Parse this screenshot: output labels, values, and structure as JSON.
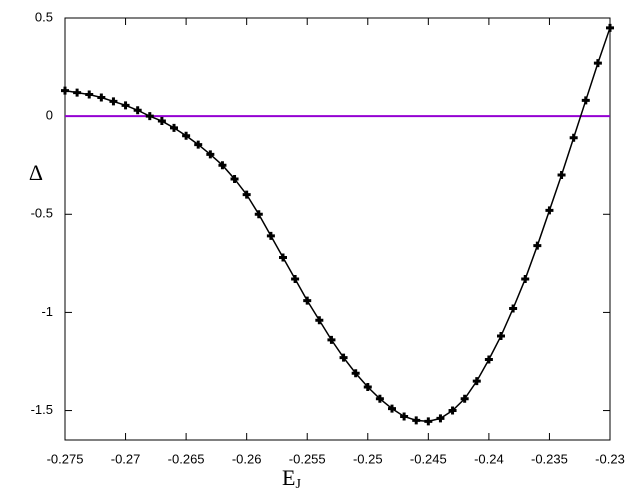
{
  "chart_data": {
    "type": "line",
    "xlabel": "E",
    "xlabel_subscript": "J",
    "ylabel": "Δ",
    "x": [
      -0.275,
      -0.274,
      -0.273,
      -0.272,
      -0.271,
      -0.27,
      -0.269,
      -0.268,
      -0.267,
      -0.266,
      -0.265,
      -0.264,
      -0.263,
      -0.262,
      -0.261,
      -0.26,
      -0.259,
      -0.258,
      -0.257,
      -0.256,
      -0.255,
      -0.254,
      -0.253,
      -0.252,
      -0.251,
      -0.25,
      -0.249,
      -0.248,
      -0.247,
      -0.246,
      -0.245,
      -0.244,
      -0.243,
      -0.242,
      -0.241,
      -0.24,
      -0.239,
      -0.238,
      -0.237,
      -0.236,
      -0.235,
      -0.234,
      -0.233,
      -0.232,
      -0.231,
      -0.23
    ],
    "series": [
      {
        "color": "#000000",
        "values": [
          0.13,
          0.12,
          0.11,
          0.095,
          0.075,
          0.055,
          0.03,
          0,
          -0.025,
          -0.06,
          -0.1,
          -0.145,
          -0.195,
          -0.25,
          -0.32,
          -0.4,
          -0.5,
          -0.61,
          -0.72,
          -0.83,
          -0.94,
          -1.04,
          -1.14,
          -1.23,
          -1.31,
          -1.38,
          -1.44,
          -1.49,
          -1.53,
          -1.55,
          -1.555,
          -1.54,
          -1.5,
          -1.44,
          -1.35,
          -1.24,
          -1.12,
          -0.98,
          -0.83,
          -0.66,
          -0.48,
          -0.3,
          -0.11,
          0.08,
          0.27,
          0.45
        ]
      }
    ],
    "reference_line": {
      "y": 0,
      "color": "#9400d3"
    },
    "xlim": [
      -0.275,
      -0.23
    ],
    "ylim": [
      -1.65,
      0.5
    ],
    "xticks": [
      -0.275,
      -0.27,
      -0.265,
      -0.26,
      -0.255,
      -0.25,
      -0.245,
      -0.24,
      -0.235,
      -0.23
    ],
    "yticks": [
      0.5,
      0,
      -0.5,
      -1,
      -1.5
    ]
  }
}
